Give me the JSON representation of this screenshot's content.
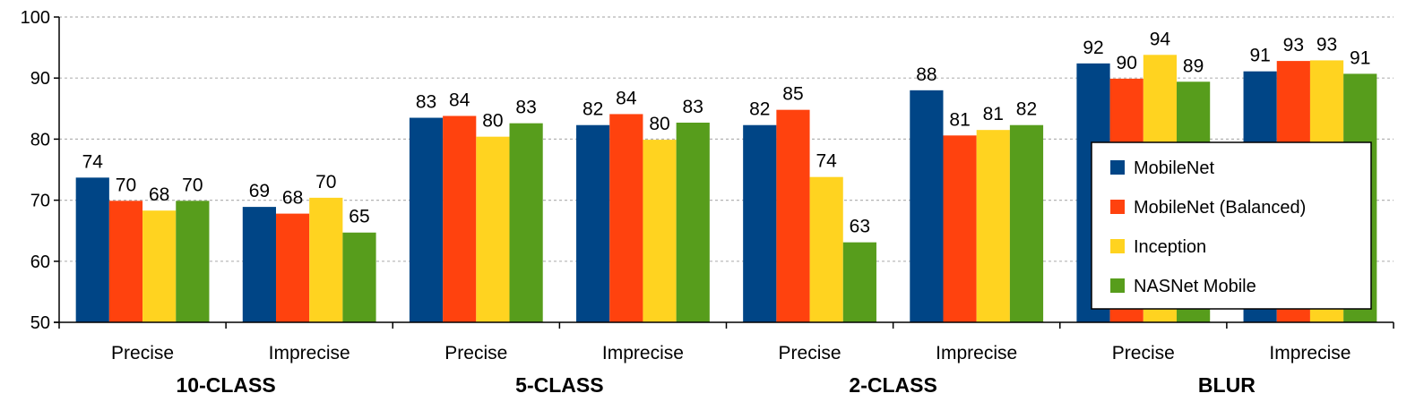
{
  "chart_data": {
    "type": "bar",
    "groups": [
      "10-CLASS",
      "5-CLASS",
      "2-CLASS",
      "BLUR"
    ],
    "categories": [
      "Precise",
      "Imprecise",
      "Precise",
      "Imprecise",
      "Precise",
      "Imprecise",
      "Precise",
      "Imprecise"
    ],
    "category_group_index": [
      0,
      0,
      1,
      1,
      2,
      2,
      3,
      3
    ],
    "series": [
      {
        "name": "MobileNet",
        "color": "#004586",
        "values": [
          73.7,
          68.9,
          83.5,
          82.3,
          82.3,
          88.0,
          92.4,
          91.1
        ],
        "labels": [
          "74",
          "69",
          "83",
          "82",
          "82",
          "88",
          "92",
          "91"
        ]
      },
      {
        "name": "MobileNet (Balanced)",
        "color": "#ff420e",
        "values": [
          69.9,
          67.8,
          83.8,
          84.1,
          84.8,
          80.6,
          89.9,
          92.8
        ],
        "labels": [
          "70",
          "68",
          "84",
          "84",
          "85",
          "81",
          "90",
          "93"
        ]
      },
      {
        "name": "Inception",
        "color": "#ffd320",
        "values": [
          68.3,
          70.4,
          80.4,
          79.9,
          73.8,
          81.5,
          93.8,
          92.9
        ],
        "labels": [
          "68",
          "70",
          "80",
          "80",
          "74",
          "81",
          "94",
          "93"
        ]
      },
      {
        "name": "NASNet Mobile",
        "color": "#579d1c",
        "values": [
          69.9,
          64.7,
          82.6,
          82.7,
          63.1,
          82.3,
          89.4,
          90.7
        ],
        "labels": [
          "70",
          "65",
          "83",
          "83",
          "63",
          "82",
          "89",
          "91"
        ]
      }
    ],
    "ylim": [
      50,
      100
    ],
    "yticks": [
      "50",
      "60",
      "70",
      "80",
      "90",
      "100"
    ],
    "grid": true,
    "legend_position": "right"
  }
}
